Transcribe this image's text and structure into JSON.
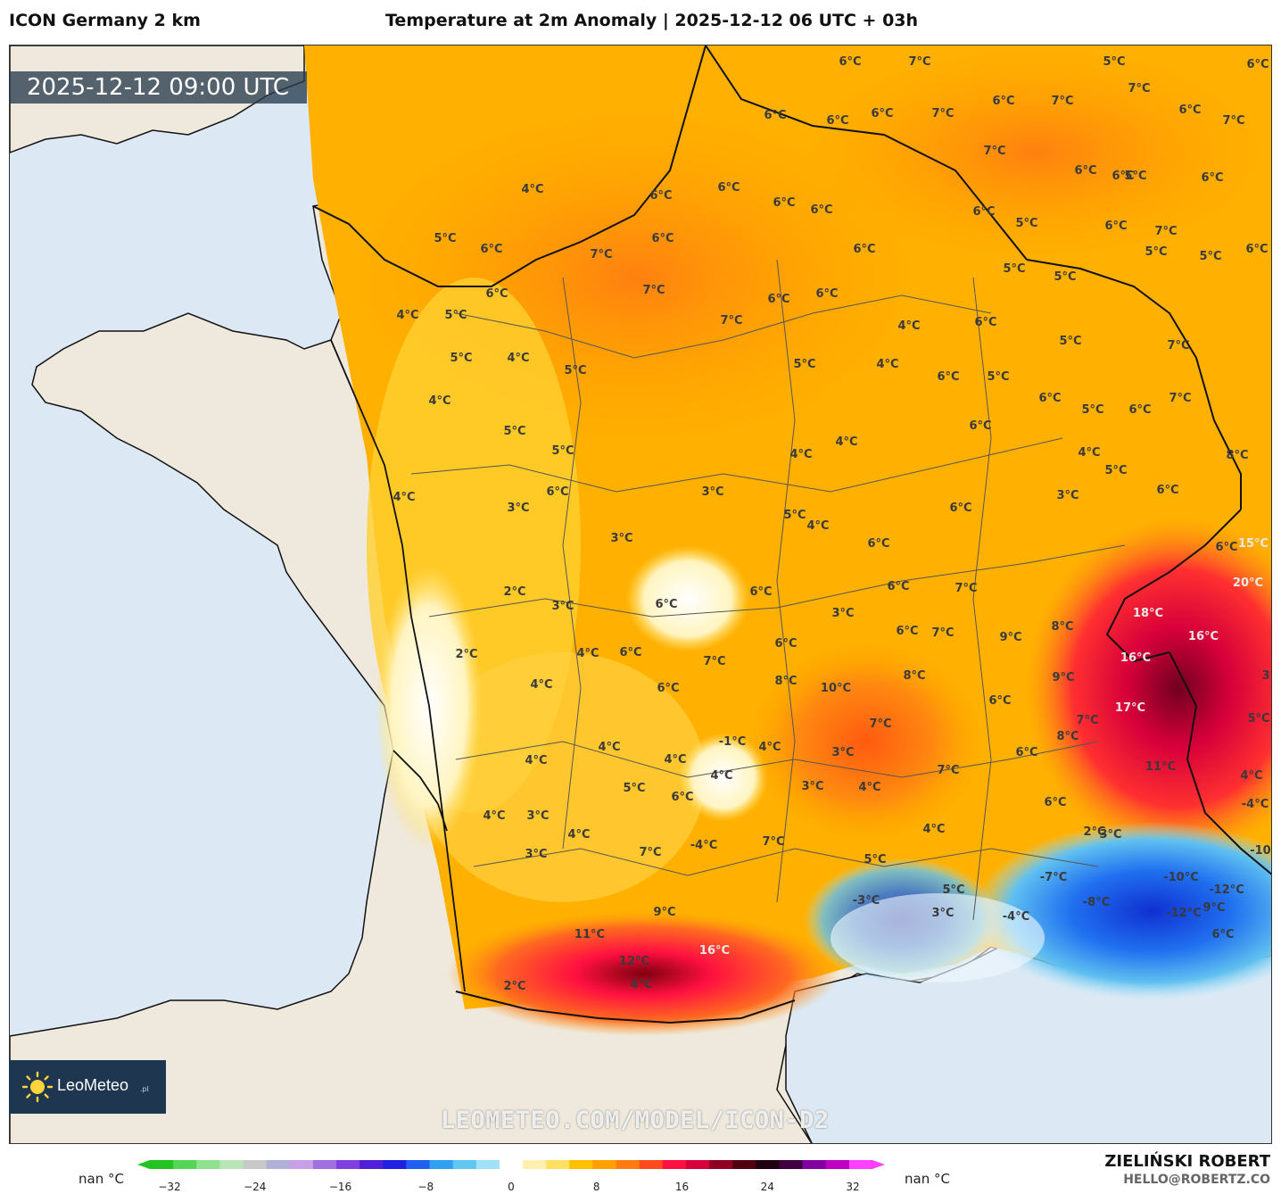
{
  "header": {
    "model_name": "ICON Germany 2 km",
    "title": "Temperature at 2m Anomaly | 2025-12-12 06 UTC + 03h"
  },
  "timestamp": "2025-12-12 09:00 UTC",
  "logo": {
    "name": "LeoMeteo",
    "suffix": ".pl",
    "icon": "sun-icon"
  },
  "watermark": "LEOMETEO.COM/MODEL/ICON-D2",
  "author": {
    "name": "ZIELIŃSKI ROBERT",
    "email": "HELLO@ROBERTZ.CO"
  },
  "legend": {
    "unit_left": "nan °C",
    "unit_right": "nan °C",
    "ticks": [
      "−32",
      "−24",
      "−16",
      "−8",
      "0",
      "8",
      "16",
      "24",
      "32"
    ],
    "colors": [
      "#22c422",
      "#55d455",
      "#8fe08f",
      "#b8e6b8",
      "#c8c8c8",
      "#b0b0d8",
      "#c8a0e8",
      "#a070e0",
      "#8040e0",
      "#5020d8",
      "#2020e0",
      "#2060f0",
      "#30a0f0",
      "#60c8f0",
      "#a0e0f8",
      "#ffffff",
      "#fff0b0",
      "#ffe060",
      "#ffc000",
      "#ffa000",
      "#ff7a10",
      "#ff4a20",
      "#ff1040",
      "#d8003a",
      "#900020",
      "#500010",
      "#200010",
      "#400040",
      "#8000a0",
      "#c000c0",
      "#ff40ff"
    ]
  },
  "colors": {
    "sea": "#dce9f5",
    "land_outside": "#efe8dc",
    "anomaly_warm": "#ffa000",
    "anomaly_cold": "#1e5ee8"
  },
  "map_labels": [
    {
      "text": "6°C"
    },
    {
      "text": "7°C"
    },
    {
      "text": "5°C"
    },
    {
      "text": "6°C"
    },
    {
      "text": "7°C"
    },
    {
      "text": "7°C"
    },
    {
      "text": "6°C"
    },
    {
      "text": "6°C"
    },
    {
      "text": "6°C"
    },
    {
      "text": "6°C"
    },
    {
      "text": "7°C"
    },
    {
      "text": "6°C"
    },
    {
      "text": "7°C"
    },
    {
      "text": "7°C"
    },
    {
      "text": "6°C"
    },
    {
      "text": "6°C"
    },
    {
      "text": "5°C"
    },
    {
      "text": "4°C"
    },
    {
      "text": "6°C"
    },
    {
      "text": "6°C"
    },
    {
      "text": "6°C"
    },
    {
      "text": "6°C"
    },
    {
      "text": "6°C"
    },
    {
      "text": "5°C"
    },
    {
      "text": "6°C"
    },
    {
      "text": "5°C"
    },
    {
      "text": "6°C"
    },
    {
      "text": "6°C"
    },
    {
      "text": "7°C"
    },
    {
      "text": "6°C"
    },
    {
      "text": "6°C"
    },
    {
      "text": "5°C"
    },
    {
      "text": "5°C"
    },
    {
      "text": "6°C"
    },
    {
      "text": "7°C"
    },
    {
      "text": "6°C"
    },
    {
      "text": "5°C"
    },
    {
      "text": "5°C"
    },
    {
      "text": "4°C"
    },
    {
      "text": "5°C"
    },
    {
      "text": "7°C"
    },
    {
      "text": "6°C"
    },
    {
      "text": "6°C"
    },
    {
      "text": "7°C"
    },
    {
      "text": "4°C"
    },
    {
      "text": "6°C"
    },
    {
      "text": "7°C"
    },
    {
      "text": "5°C"
    },
    {
      "text": "5°C"
    },
    {
      "text": "5°C"
    },
    {
      "text": "5°C"
    },
    {
      "text": "4°C"
    },
    {
      "text": "4°C"
    },
    {
      "text": "5°C"
    },
    {
      "text": "6°C"
    },
    {
      "text": "7°C"
    },
    {
      "text": "4°C"
    },
    {
      "text": "6°C"
    },
    {
      "text": "5°C"
    },
    {
      "text": "6°C"
    },
    {
      "text": "5°C"
    },
    {
      "text": "5°C"
    },
    {
      "text": "4°C"
    },
    {
      "text": "6°C"
    },
    {
      "text": "4°C"
    },
    {
      "text": "8°C"
    },
    {
      "text": "4°C"
    },
    {
      "text": "4°C"
    },
    {
      "text": "3°C"
    },
    {
      "text": "6°C"
    },
    {
      "text": "3°C"
    },
    {
      "text": "6°C"
    },
    {
      "text": "6°C"
    },
    {
      "text": "3°C"
    },
    {
      "text": "4°C"
    },
    {
      "text": "6°C"
    },
    {
      "text": "15°C"
    },
    {
      "text": "3°C"
    },
    {
      "text": "6°C"
    },
    {
      "text": "7°C"
    },
    {
      "text": "20°C"
    },
    {
      "text": "2°C"
    },
    {
      "text": "3°C"
    },
    {
      "text": "6°C"
    },
    {
      "text": "6°C"
    },
    {
      "text": "3°C"
    },
    {
      "text": "6°C"
    },
    {
      "text": "7°C"
    },
    {
      "text": "18°C"
    },
    {
      "text": "8°C"
    },
    {
      "text": "9°C"
    },
    {
      "text": "16°C"
    },
    {
      "text": "2°C"
    },
    {
      "text": "4°C"
    },
    {
      "text": "6°C"
    },
    {
      "text": "6°C"
    },
    {
      "text": "6°C"
    },
    {
      "text": "16°C"
    },
    {
      "text": "9°C"
    },
    {
      "text": "4°C"
    },
    {
      "text": "6°C"
    },
    {
      "text": "7°C"
    },
    {
      "text": "10°C"
    },
    {
      "text": "8°C"
    },
    {
      "text": "3°C"
    },
    {
      "text": "8°C"
    },
    {
      "text": "6°C"
    },
    {
      "text": "17°C"
    },
    {
      "text": "7°C"
    },
    {
      "text": "-1°C"
    },
    {
      "text": "4°C"
    },
    {
      "text": "3°C"
    },
    {
      "text": "7°C"
    },
    {
      "text": "8°C"
    },
    {
      "text": "5°C"
    },
    {
      "text": "4°C"
    },
    {
      "text": "4°C"
    },
    {
      "text": "6°C"
    },
    {
      "text": "11°C"
    },
    {
      "text": "4°C"
    },
    {
      "text": "4°C"
    },
    {
      "text": "4°C"
    },
    {
      "text": "7°C"
    },
    {
      "text": "6°C"
    },
    {
      "text": "5°C"
    },
    {
      "text": "4°C"
    },
    {
      "text": "3°C"
    },
    {
      "text": "3°C"
    },
    {
      "text": "6°C"
    },
    {
      "text": "4°C"
    },
    {
      "text": "-4°C"
    },
    {
      "text": "4°C"
    },
    {
      "text": "3°C"
    },
    {
      "text": "2°C"
    },
    {
      "text": "3°C"
    },
    {
      "text": "5°C"
    },
    {
      "text": "4°C"
    },
    {
      "text": "7°C"
    },
    {
      "text": "-4°C"
    },
    {
      "text": "-10°C"
    },
    {
      "text": "-7°C"
    },
    {
      "text": "-10°C"
    },
    {
      "text": "-3°C"
    },
    {
      "text": "-12°C"
    },
    {
      "text": "-8°C"
    },
    {
      "text": "9°C"
    },
    {
      "text": "-4°C"
    },
    {
      "text": "-12°C"
    },
    {
      "text": "11°C"
    },
    {
      "text": "16°C"
    },
    {
      "text": "12°C"
    },
    {
      "text": "2°C"
    },
    {
      "text": "9°C"
    },
    {
      "text": "7°C"
    },
    {
      "text": "5°C"
    },
    {
      "text": "6°C"
    },
    {
      "text": "5°C"
    },
    {
      "text": "4°C"
    },
    {
      "text": "5°C"
    },
    {
      "text": "3°C"
    }
  ]
}
